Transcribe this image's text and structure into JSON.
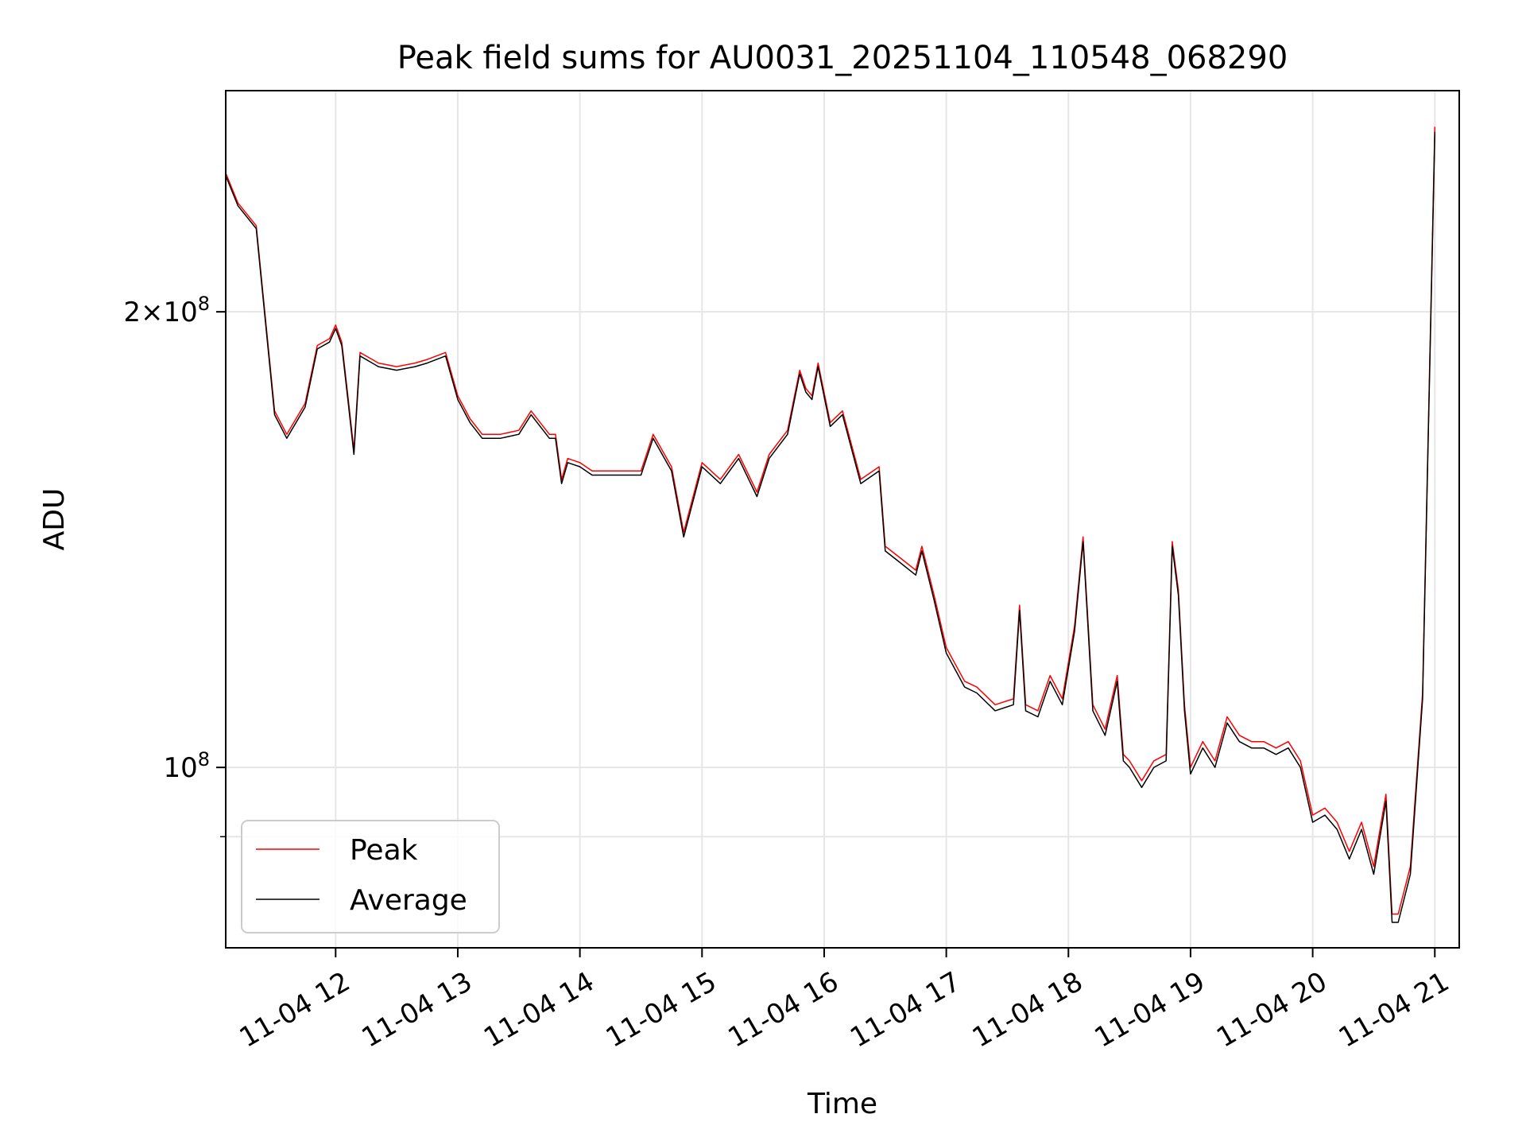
{
  "chart_data": {
    "type": "line",
    "title": "Peak field sums for AU0031_20251104_110548_068290",
    "xlabel": "Time",
    "ylabel": "ADU",
    "yscale": "log",
    "ylim": [
      76000000,
      280000000
    ],
    "xlim_hours": [
      11.1,
      21.2
    ],
    "x_ticks": [
      {
        "hour": 12,
        "label": "11-04 12"
      },
      {
        "hour": 13,
        "label": "11-04 13"
      },
      {
        "hour": 14,
        "label": "11-04 14"
      },
      {
        "hour": 15,
        "label": "11-04 15"
      },
      {
        "hour": 16,
        "label": "11-04 16"
      },
      {
        "hour": 17,
        "label": "11-04 17"
      },
      {
        "hour": 18,
        "label": "11-04 18"
      },
      {
        "hour": 19,
        "label": "11-04 19"
      },
      {
        "hour": 20,
        "label": "11-04 20"
      },
      {
        "hour": 21,
        "label": "11-04 21"
      }
    ],
    "y_major_ticks": [
      {
        "value": 100000000,
        "mantissa": "",
        "exponent": "8"
      },
      {
        "value": 200000000,
        "mantissa": "2",
        "exponent": "8"
      }
    ],
    "y_minor_ticks": [
      90000000
    ],
    "grid": true,
    "legend": {
      "placement": "lower-left"
    },
    "series": [
      {
        "name": "Peak",
        "color": "#ff0000",
        "x_hours": [
          11.1,
          11.2,
          11.35,
          11.5,
          11.6,
          11.75,
          11.85,
          11.95,
          12.0,
          12.05,
          12.1,
          12.15,
          12.2,
          12.3,
          12.35,
          12.5,
          12.65,
          12.75,
          12.9,
          13.0,
          13.1,
          13.2,
          13.35,
          13.5,
          13.6,
          13.75,
          13.8,
          13.85,
          13.9,
          14.0,
          14.1,
          14.3,
          14.5,
          14.6,
          14.75,
          14.85,
          15.0,
          15.15,
          15.3,
          15.45,
          15.55,
          15.7,
          15.8,
          15.85,
          15.9,
          15.95,
          16.05,
          16.15,
          16.3,
          16.45,
          16.5,
          16.6,
          16.75,
          16.8,
          16.9,
          17.0,
          17.15,
          17.25,
          17.4,
          17.55,
          17.6,
          17.65,
          17.75,
          17.85,
          17.95,
          18.05,
          18.12,
          18.2,
          18.3,
          18.4,
          18.45,
          18.5,
          18.6,
          18.7,
          18.8,
          18.85,
          18.9,
          18.95,
          19.0,
          19.1,
          19.2,
          19.3,
          19.4,
          19.5,
          19.6,
          19.7,
          19.8,
          19.9,
          20.0,
          20.1,
          20.2,
          20.3,
          20.4,
          20.5,
          20.6,
          20.65,
          20.7,
          20.8,
          20.9,
          21.0
        ],
        "values": [
          247,
          236,
          228,
          172,
          166,
          174,
          190,
          192,
          196,
          191,
          176,
          162,
          188,
          186,
          185,
          184,
          185,
          186,
          188,
          176,
          170,
          166,
          166,
          167,
          172,
          166,
          166,
          155,
          160,
          159,
          157,
          157,
          157,
          166,
          158,
          143,
          159,
          155,
          161,
          152,
          161,
          167,
          183,
          178,
          176,
          185,
          169,
          172,
          155,
          158,
          140,
          138,
          135,
          140,
          130,
          120,
          114,
          113,
          110,
          111,
          128,
          110,
          109,
          115,
          111,
          124,
          142,
          110,
          106,
          115,
          102,
          101,
          98,
          101,
          102,
          141,
          131,
          110,
          100,
          104,
          101,
          108,
          105,
          104,
          104,
          103,
          104,
          101,
          93,
          94,
          92,
          88,
          92,
          86,
          96,
          80,
          80,
          86,
          112,
          265
        ]
      },
      {
        "name": "Average",
        "color": "#000000",
        "x_hours": [
          11.1,
          11.2,
          11.35,
          11.5,
          11.6,
          11.75,
          11.85,
          11.95,
          12.0,
          12.05,
          12.1,
          12.15,
          12.2,
          12.3,
          12.35,
          12.5,
          12.65,
          12.75,
          12.9,
          13.0,
          13.1,
          13.2,
          13.35,
          13.5,
          13.6,
          13.75,
          13.8,
          13.85,
          13.9,
          14.0,
          14.1,
          14.3,
          14.5,
          14.6,
          14.75,
          14.85,
          15.0,
          15.15,
          15.3,
          15.45,
          15.55,
          15.7,
          15.8,
          15.85,
          15.9,
          15.95,
          16.05,
          16.15,
          16.3,
          16.45,
          16.5,
          16.6,
          16.75,
          16.8,
          16.9,
          17.0,
          17.15,
          17.25,
          17.4,
          17.55,
          17.6,
          17.65,
          17.75,
          17.85,
          17.95,
          18.05,
          18.12,
          18.2,
          18.3,
          18.4,
          18.45,
          18.5,
          18.6,
          18.7,
          18.8,
          18.85,
          18.9,
          18.95,
          19.0,
          19.1,
          19.2,
          19.3,
          19.4,
          19.5,
          19.6,
          19.7,
          19.8,
          19.9,
          20.0,
          20.1,
          20.2,
          20.3,
          20.4,
          20.5,
          20.6,
          20.65,
          20.7,
          20.8,
          20.9,
          21.0
        ],
        "values": [
          246,
          235,
          227,
          171,
          165,
          173,
          189,
          191,
          195,
          190,
          175,
          161,
          187,
          185,
          184,
          183,
          184,
          185,
          187,
          175,
          169,
          165,
          165,
          166,
          171,
          165,
          165,
          154,
          159,
          158,
          156,
          156,
          156,
          165,
          157,
          142,
          158,
          154,
          160,
          151,
          160,
          166,
          182,
          177,
          175,
          184,
          168,
          171,
          154,
          157,
          139,
          137,
          134,
          139,
          129,
          119,
          113,
          112,
          109,
          110,
          127,
          109,
          108,
          114,
          110,
          123,
          141,
          109,
          105,
          114,
          101,
          100,
          97,
          100,
          101,
          140,
          130,
          109,
          99,
          103,
          100,
          107,
          104,
          103,
          103,
          102,
          103,
          100,
          92,
          93,
          91,
          87,
          91,
          85,
          95,
          79,
          79,
          85,
          111,
          263
        ]
      }
    ]
  }
}
